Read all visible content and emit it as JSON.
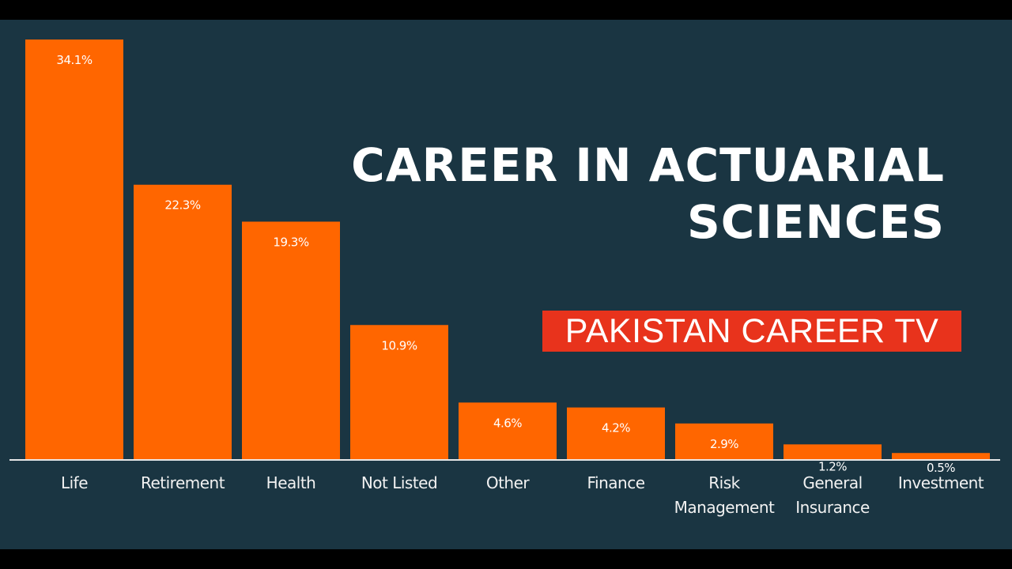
{
  "overlay": {
    "title": "CAREER IN ACTUARIAL\nSCIENCES",
    "badge": "PAKISTAN CAREER TV"
  },
  "colors": {
    "background": "#1a3542",
    "bar": "#ff6600",
    "badge": "#e8331c",
    "axis": "#e6e6e6"
  },
  "chart_data": {
    "type": "bar",
    "categories": [
      "Life",
      "Retirement",
      "Health",
      "Not Listed",
      "Other",
      "Finance",
      "Risk Management",
      "General Insurance",
      "Investment"
    ],
    "values": [
      34.1,
      22.3,
      19.3,
      10.9,
      4.6,
      4.2,
      2.9,
      1.2,
      0.5
    ],
    "value_labels": [
      "34.1%",
      "22.3%",
      "19.3%",
      "10.9%",
      "4.6%",
      "4.2%",
      "2.9%",
      "1.2%",
      "0.5%"
    ],
    "title": "",
    "xlabel": "",
    "ylabel": "",
    "ylim": [
      0,
      34.1
    ],
    "grid": false,
    "legend": "none"
  }
}
